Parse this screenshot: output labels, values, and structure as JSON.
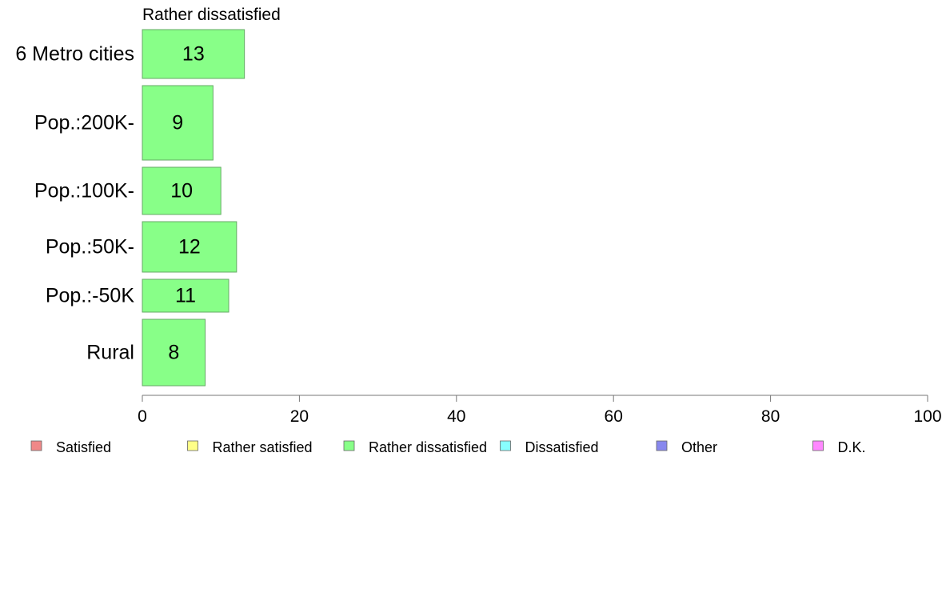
{
  "chart_data": {
    "type": "bar",
    "orientation": "horizontal",
    "title": "Rather dissatisfied",
    "categories": [
      "6 Metro cities",
      "Pop.:200K-",
      "Pop.:100K-",
      "Pop.:50K-",
      "Pop.:-50K",
      "Rural"
    ],
    "values": [
      13,
      9,
      10,
      12,
      11,
      8
    ],
    "value_labels": [
      "13",
      "9",
      "10",
      "12",
      "11",
      "8"
    ],
    "bar_color": "#88ff88",
    "xlim": [
      0,
      100
    ],
    "x_ticks": [
      0,
      20,
      40,
      60,
      80,
      100
    ],
    "x_tick_labels": [
      "0",
      "20",
      "40",
      "60",
      "80",
      "100"
    ],
    "grid": false,
    "legend_position": "bottom",
    "legend": [
      {
        "label": "Satisfied",
        "color": "#f08888"
      },
      {
        "label": "Rather satisfied",
        "color": "#ffff88"
      },
      {
        "label": "Rather dissatisfied",
        "color": "#88ff88"
      },
      {
        "label": "Dissatisfied",
        "color": "#88ffff"
      },
      {
        "label": "Other",
        "color": "#8888ee"
      },
      {
        "label": "D.K.",
        "color": "#ff88ff"
      }
    ]
  }
}
